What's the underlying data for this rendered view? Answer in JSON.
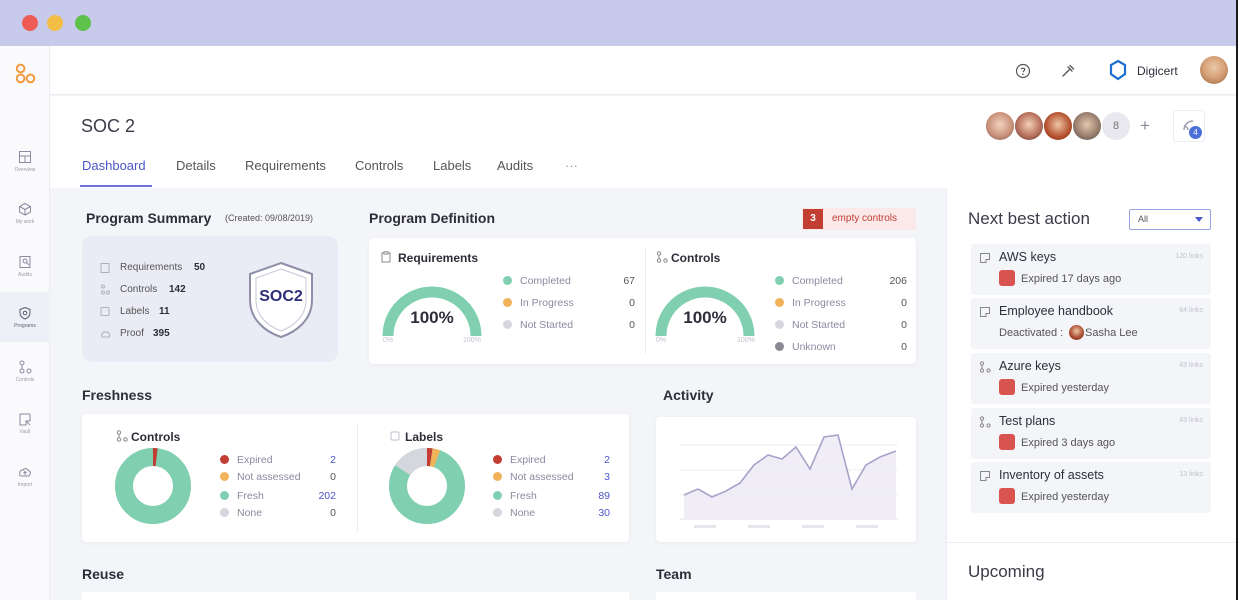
{
  "window": {
    "dots": [
      "#ee5d55",
      "#f2be45",
      "#5ec24a"
    ]
  },
  "sidebar": {
    "items": [
      {
        "label": "Overview",
        "icon": "overview-icon"
      },
      {
        "label": "My work",
        "icon": "box-icon"
      },
      {
        "label": "Audits",
        "icon": "audits-icon"
      },
      {
        "label": "Programs",
        "icon": "shield-icon"
      },
      {
        "label": "Controls",
        "icon": "controls-icon"
      },
      {
        "label": "Vault",
        "icon": "vault-icon"
      },
      {
        "label": "Import",
        "icon": "cloud-upload-icon"
      }
    ]
  },
  "topbar": {
    "org_name": "Digicert"
  },
  "page": {
    "title": "SOC 2",
    "team_overflow": "8",
    "notif_count": "4",
    "tabs": [
      "Dashboard",
      "Details",
      "Requirements",
      "Controls",
      "Labels",
      "Audits",
      "···"
    ],
    "active_tab": "Dashboard"
  },
  "summary": {
    "title": "Program Summary",
    "created": "(Created: 09/08/2019)",
    "rows": [
      {
        "label": "Requirements",
        "value": "50"
      },
      {
        "label": "Controls",
        "value": "142"
      },
      {
        "label": "Labels",
        "value": "11"
      },
      {
        "label": "Proof",
        "value": "395"
      }
    ],
    "badge": "SOC2"
  },
  "definition": {
    "title": "Program Definition",
    "empty_count": "3",
    "empty_label": "empty controls",
    "requirements": {
      "title": "Requirements",
      "percent": "100%",
      "min": "0%",
      "max": "100%",
      "items": [
        {
          "label": "Completed",
          "value": "67",
          "color": "#80cfb0"
        },
        {
          "label": "In Progress",
          "value": "0",
          "color": "#f1b35a"
        },
        {
          "label": "Not Started",
          "value": "0",
          "color": "#d6d6de"
        }
      ]
    },
    "controls": {
      "title": "Controls",
      "percent": "100%",
      "min": "0%",
      "max": "100%",
      "items": [
        {
          "label": "Completed",
          "value": "206",
          "color": "#80cfb0"
        },
        {
          "label": "In Progress",
          "value": "0",
          "color": "#f1b35a"
        },
        {
          "label": "Not Started",
          "value": "0",
          "color": "#d6d6de"
        },
        {
          "label": "Unknown",
          "value": "0",
          "color": "#8a8a94"
        }
      ]
    }
  },
  "freshness": {
    "title": "Freshness",
    "controls": {
      "title": "Controls",
      "items": [
        {
          "label": "Expired",
          "value": "2",
          "color": "#c23d32"
        },
        {
          "label": "Not assessed",
          "value": "0",
          "color": "#f1b35a"
        },
        {
          "label": "Fresh",
          "value": "202",
          "color": "#80cfb0"
        },
        {
          "label": "None",
          "value": "0",
          "color": "#d6d6de"
        }
      ]
    },
    "labels": {
      "title": "Labels",
      "items": [
        {
          "label": "Expired",
          "value": "2",
          "color": "#c23d32"
        },
        {
          "label": "Not assessed",
          "value": "3",
          "color": "#f1b35a"
        },
        {
          "label": "Fresh",
          "value": "89",
          "color": "#80cfb0"
        },
        {
          "label": "None",
          "value": "30",
          "color": "#d6d6de"
        }
      ]
    }
  },
  "activity": {
    "title": "Activity"
  },
  "reuse": {
    "title": "Reuse"
  },
  "team": {
    "title": "Team"
  },
  "next_best_action": {
    "title": "Next best action",
    "filter_value": "All",
    "items": [
      {
        "title": "AWS keys",
        "subtitle": "Expired 17 days ago",
        "links": "120 links"
      },
      {
        "title": "Employee handbook",
        "subtitle_prefix": "Deactivated :",
        "person": "Sasha Lee",
        "links": "84 links"
      },
      {
        "title": "Azure keys",
        "subtitle": "Expired yesterday",
        "links": "43 links"
      },
      {
        "title": "Test plans",
        "subtitle": "Expired 3 days ago",
        "links": "43 links"
      },
      {
        "title": "Inventory of assets",
        "subtitle": "Expired yesterday",
        "links": "13 links"
      }
    ]
  },
  "upcoming": {
    "title": "Upcoming"
  }
}
